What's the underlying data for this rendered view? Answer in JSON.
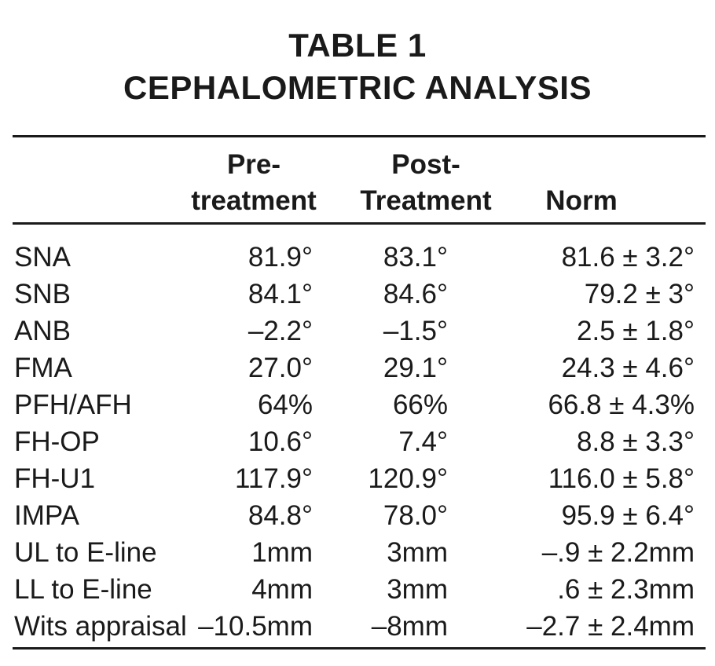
{
  "title": {
    "line1": "TABLE 1",
    "line2": "CEPHALOMETRIC ANALYSIS"
  },
  "columns": {
    "pre_line1": "Pre-",
    "pre_line2": "treatment",
    "post_line1": "Post-",
    "post_line2": "Treatment",
    "norm": "Norm"
  },
  "rows": [
    {
      "label": "SNA",
      "pre": "81.9°",
      "post": "83.1°",
      "norm": "81.6 ± 3.2°"
    },
    {
      "label": "SNB",
      "pre": "84.1°",
      "post": "84.6°",
      "norm": "79.2 ± 3°"
    },
    {
      "label": "ANB",
      "pre": "–2.2°",
      "post": "–1.5°",
      "norm": "2.5 ± 1.8°"
    },
    {
      "label": "FMA",
      "pre": "27.0°",
      "post": "29.1°",
      "norm": "24.3 ± 4.6°"
    },
    {
      "label": "PFH/AFH",
      "pre": "64%",
      "post": "66%",
      "norm": "66.8 ± 4.3%"
    },
    {
      "label": "FH-OP",
      "pre": "10.6°",
      "post": "7.4°",
      "norm": "8.8 ± 3.3°"
    },
    {
      "label": "FH-U1",
      "pre": "117.9°",
      "post": "120.9°",
      "norm": "116.0 ± 5.8°"
    },
    {
      "label": "IMPA",
      "pre": "84.8°",
      "post": "78.0°",
      "norm": "95.9 ± 6.4°"
    },
    {
      "label": "UL to E-line",
      "pre": "1mm",
      "post": "3mm",
      "norm": "–.9 ± 2.2mm"
    },
    {
      "label": "LL to E-line",
      "pre": "4mm",
      "post": "3mm",
      "norm": ".6 ± 2.3mm"
    },
    {
      "label": "Wits appraisal",
      "pre": "–10.5mm",
      "post": "–8mm",
      "norm": "–2.7 ± 2.4mm"
    }
  ]
}
